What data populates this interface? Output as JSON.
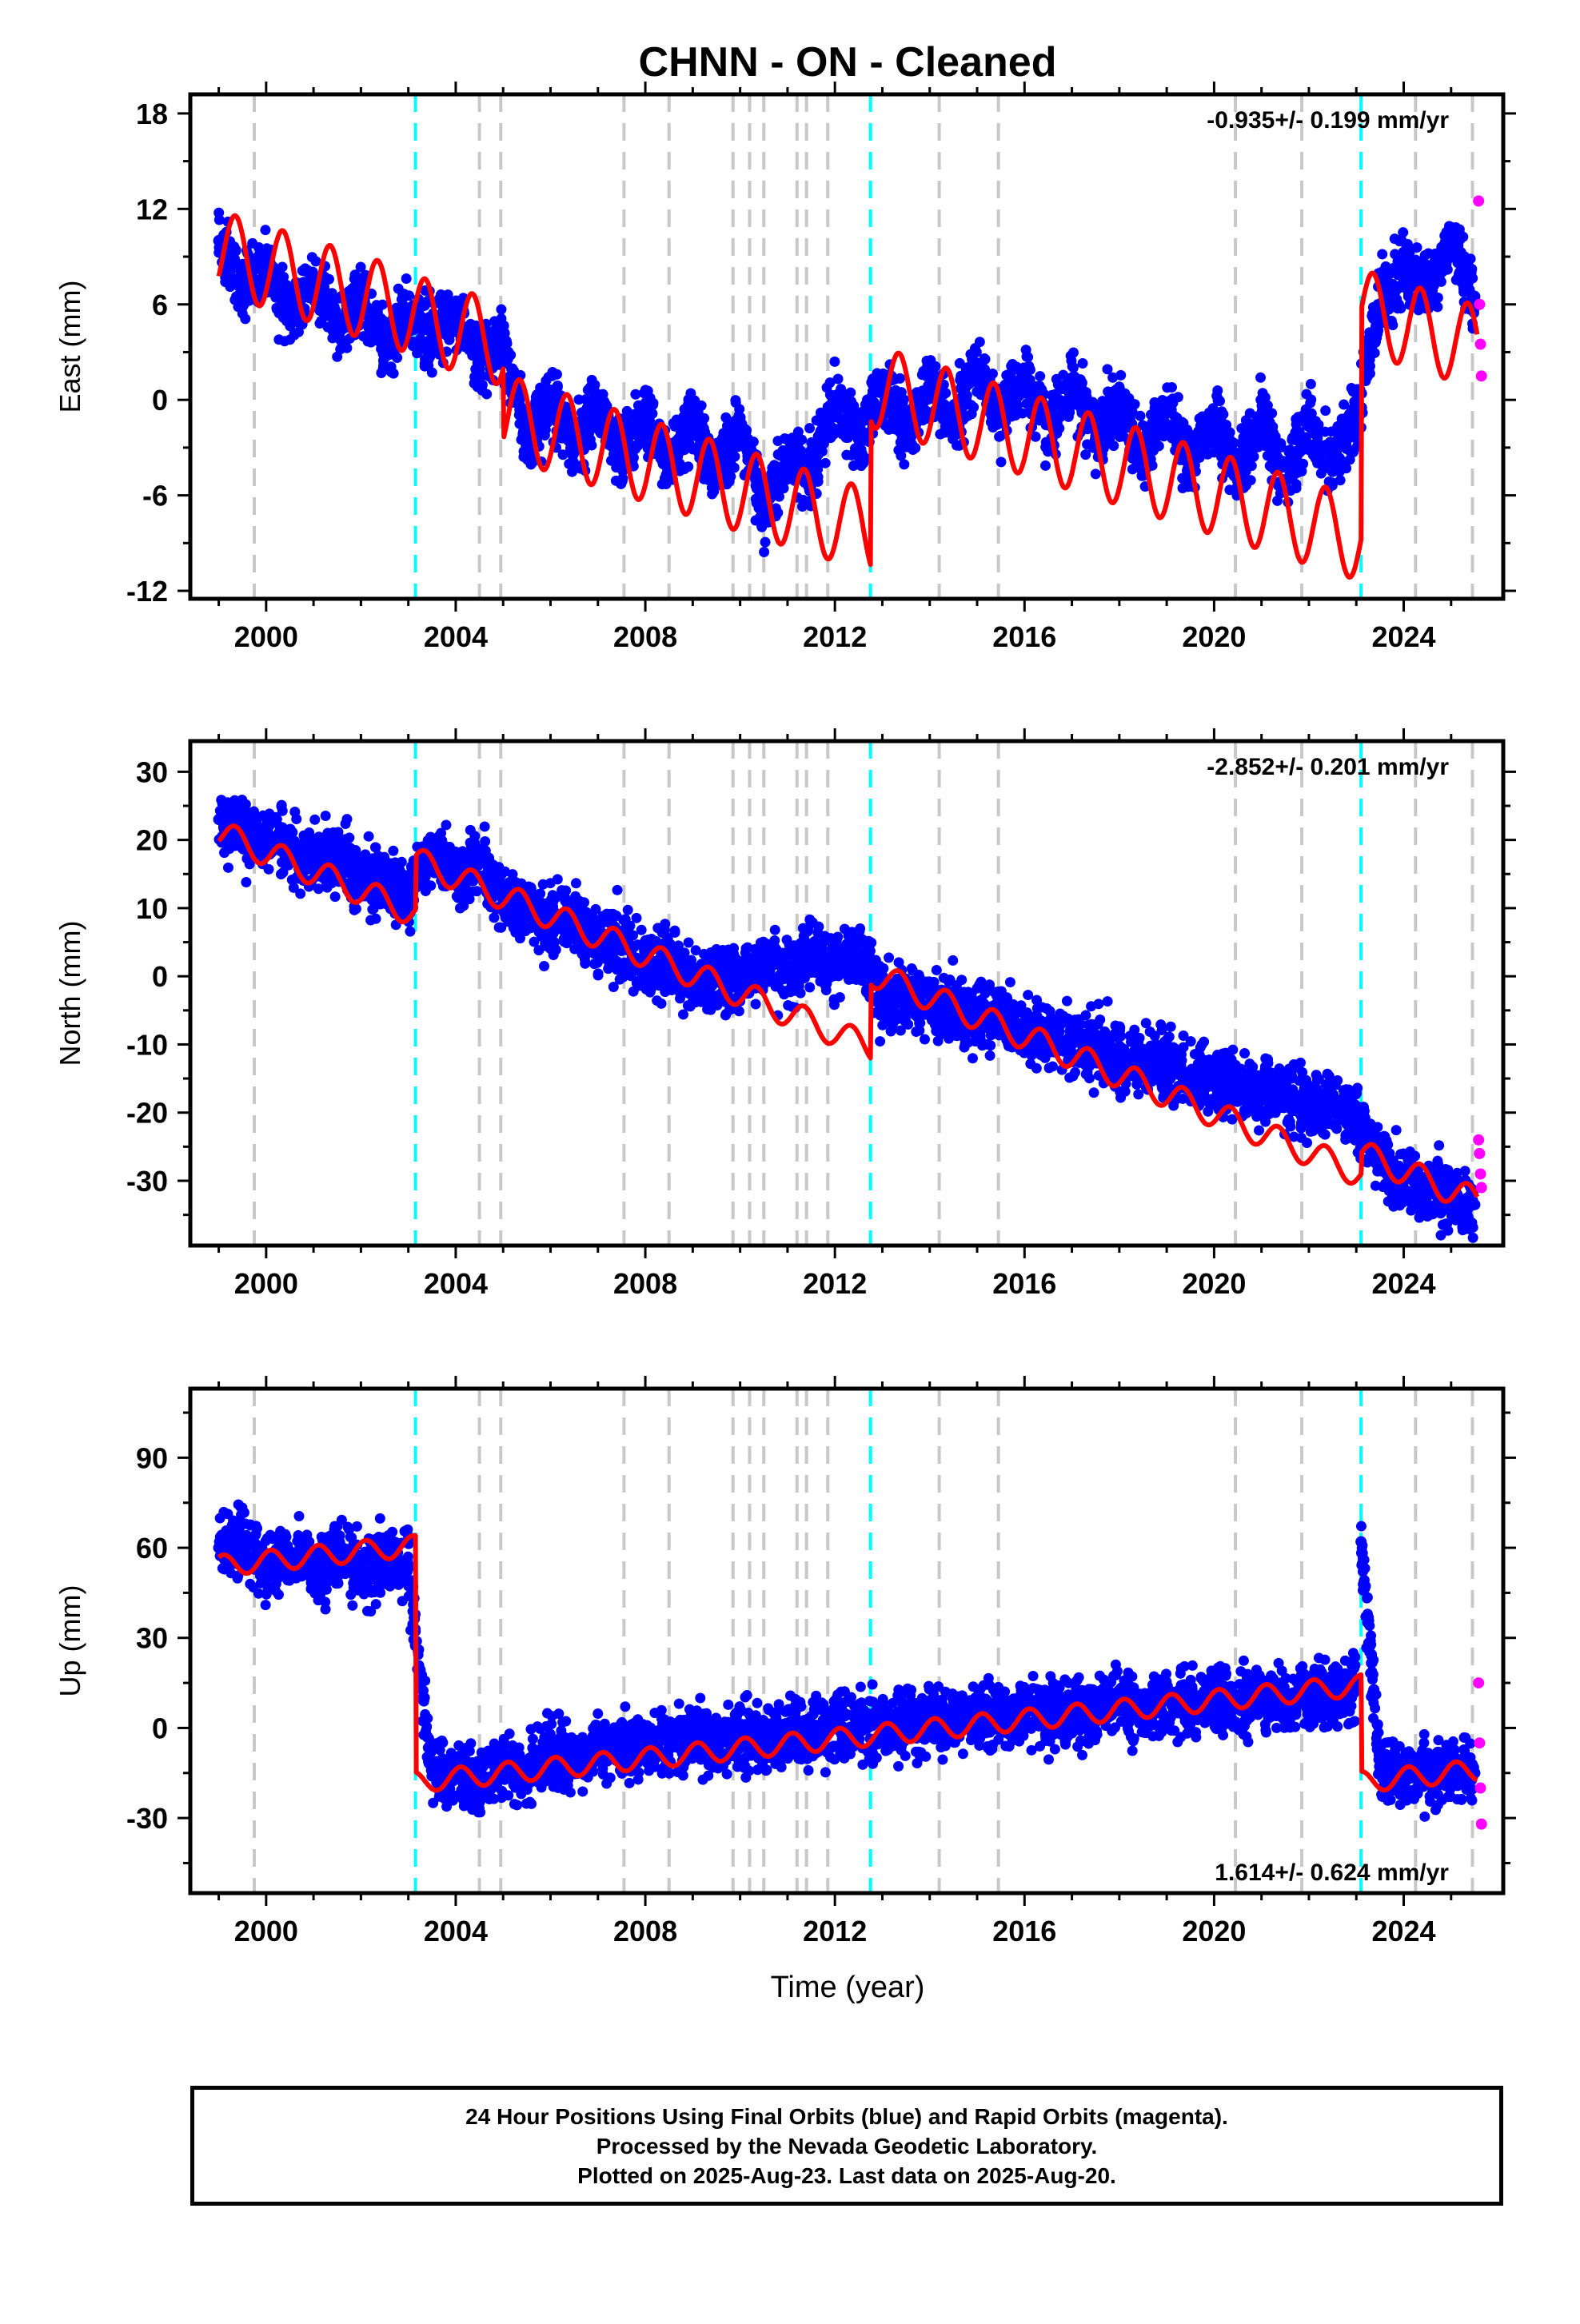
{
  "figure": {
    "title": "CHNN  - ON - Cleaned",
    "xlabel": "Time (year)",
    "caption": [
      "24 Hour Positions Using Final Orbits (blue) and Rapid Orbits (magenta).",
      "Processed by the Nevada Geodetic Laboratory.",
      "Plotted on 2025-Aug-23. Last data on 2025-Aug-20."
    ]
  },
  "colors": {
    "final_orbits": "#0000ff",
    "rapid_orbits": "#ff00ff",
    "model": "#ff0000",
    "equipment_change": "#c8c8c8",
    "earthquake": "#00ffff"
  },
  "events": {
    "gray": [
      1999.75,
      2004.5,
      2004.95,
      2007.55,
      2008.5,
      2009.85,
      2010.2,
      2010.5,
      2011.2,
      2011.4,
      2011.85,
      2014.2,
      2015.45,
      2020.45,
      2021.85,
      2024.25,
      2025.45
    ],
    "cyan": [
      2003.15,
      2012.75,
      2023.1
    ]
  },
  "chart_data": [
    {
      "type": "scatter",
      "id": "east",
      "ylabel": "East (mm)",
      "rate_label": "-0.935+/- 0.199 mm/yr",
      "rate_position": "top-right",
      "xlim": [
        1998.4,
        2026.1
      ],
      "ylim": [
        -12.5,
        19.2
      ],
      "xticks": [
        2000,
        2004,
        2008,
        2012,
        2016,
        2020,
        2024
      ],
      "xtick_labels": [
        "2000",
        "2004",
        "2008",
        "2012",
        "2016",
        "2020",
        "2024"
      ],
      "yticks": [
        18,
        12,
        6,
        0,
        -6,
        -12
      ],
      "ytick_labels": [
        "18",
        "12",
        "6",
        "0",
        "-6",
        "-12"
      ],
      "model": {
        "rate": -0.935,
        "amp": 2.6,
        "phase": 0.35,
        "segments": [
          {
            "start": 1999.0,
            "end": 2003.15,
            "ref": 1999.0,
            "offset": 9.3
          },
          {
            "start": 2003.15,
            "end": 2005.0,
            "ref": 2003.15,
            "offset": 5.2
          },
          {
            "start": 2005.0,
            "end": 2012.75,
            "ref": 2005.0,
            "offset": -1.0
          },
          {
            "start": 2012.75,
            "end": 2023.1,
            "ref": 2012.75,
            "offset": 0.9
          },
          {
            "start": 2023.1,
            "end": 2025.55,
            "ref": 2023.1,
            "offset": 5.6
          }
        ]
      },
      "series": [
        {
          "name": "Final Orbits",
          "x": [
            1999.0,
            1999.5,
            2000.0,
            2000.5,
            2001.0,
            2001.5,
            2002.0,
            2002.5,
            2003.0,
            2003.5,
            2004.0,
            2004.5,
            2005.0,
            2005.5,
            2006.0,
            2006.5,
            2007.0,
            2007.5,
            2008.0,
            2008.5,
            2009.0,
            2009.5,
            2010.0,
            2010.5,
            2011.0,
            2011.5,
            2012.0,
            2012.5,
            2013.0,
            2013.5,
            2014.0,
            2014.5,
            2015.0,
            2015.5,
            2016.0,
            2016.5,
            2017.0,
            2017.5,
            2018.0,
            2018.5,
            2019.0,
            2019.5,
            2020.0,
            2020.5,
            2021.0,
            2021.5,
            2022.0,
            2022.5,
            2023.0,
            2023.5,
            2024.0,
            2024.5,
            2025.0,
            2025.5
          ],
          "y": [
            10.0,
            7.0,
            8.5,
            5.5,
            7.5,
            4.5,
            6.5,
            3.5,
            5.5,
            4.0,
            5.5,
            2.5,
            4.0,
            -2.5,
            0.5,
            -3.0,
            -0.5,
            -3.5,
            -1.0,
            -4.0,
            -1.0,
            -4.5,
            -1.5,
            -7.0,
            -3.5,
            -4.5,
            0.0,
            -2.5,
            1.0,
            -2.0,
            1.0,
            -1.5,
            2.0,
            -1.0,
            1.5,
            -1.5,
            1.0,
            -2.5,
            0.0,
            -3.5,
            -0.5,
            -4.0,
            -1.0,
            -4.5,
            -1.0,
            -5.0,
            -1.5,
            -4.0,
            -1.0,
            6.0,
            8.5,
            7.0,
            10.0,
            6.5
          ]
        },
        {
          "name": "Rapid Orbits",
          "x": [
            2025.58,
            2025.6,
            2025.62,
            2025.64
          ],
          "y": [
            12.5,
            6.0,
            3.5,
            1.5
          ]
        }
      ]
    },
    {
      "type": "scatter",
      "id": "north",
      "ylabel": "North (mm)",
      "rate_label": "-2.852+/- 0.201 mm/yr",
      "rate_position": "top-right",
      "xlim": [
        1998.4,
        2026.1
      ],
      "ylim": [
        -39.5,
        34.5
      ],
      "xticks": [
        2000,
        2004,
        2008,
        2012,
        2016,
        2020,
        2024
      ],
      "xtick_labels": [
        "2000",
        "2004",
        "2008",
        "2012",
        "2016",
        "2020",
        "2024"
      ],
      "yticks": [
        30,
        20,
        10,
        0,
        -10,
        -20,
        -30
      ],
      "ytick_labels": [
        "30",
        "20",
        "10",
        "0",
        "-10",
        "-20",
        "-30"
      ],
      "model": {
        "rate": -2.852,
        "amp": 2.0,
        "phase": 0.35,
        "segments": [
          {
            "start": 1999.0,
            "end": 2003.15,
            "ref": 1999.0,
            "offset": 21.0
          },
          {
            "start": 2003.15,
            "end": 2012.75,
            "ref": 2003.15,
            "offset": 17.0
          },
          {
            "start": 2012.75,
            "end": 2023.1,
            "ref": 2012.75,
            "offset": 0.5
          },
          {
            "start": 2023.1,
            "end": 2025.55,
            "ref": 2023.1,
            "offset": -26.0
          }
        ]
      },
      "series": [
        {
          "name": "Final Orbits",
          "x": [
            1999.0,
            1999.5,
            2000.0,
            2000.5,
            2001.0,
            2001.5,
            2002.0,
            2002.5,
            2003.0,
            2003.5,
            2004.0,
            2004.5,
            2005.0,
            2005.5,
            2006.0,
            2006.5,
            2007.0,
            2007.5,
            2008.0,
            2008.5,
            2009.0,
            2009.5,
            2010.0,
            2010.5,
            2011.0,
            2011.5,
            2012.0,
            2012.5,
            2013.0,
            2013.5,
            2014.0,
            2014.5,
            2015.0,
            2015.5,
            2016.0,
            2016.5,
            2017.0,
            2017.5,
            2018.0,
            2018.5,
            2019.0,
            2019.5,
            2020.0,
            2020.5,
            2021.0,
            2021.5,
            2022.0,
            2022.5,
            2023.0,
            2023.5,
            2024.0,
            2024.5,
            2025.0,
            2025.5
          ],
          "y": [
            23.0,
            21.5,
            20.0,
            19.5,
            17.0,
            17.0,
            14.5,
            14.0,
            11.5,
            19.0,
            15.0,
            17.0,
            11.0,
            10.0,
            8.0,
            8.0,
            5.0,
            4.5,
            2.0,
            2.0,
            -1.0,
            0.0,
            -1.0,
            2.5,
            1.0,
            3.5,
            1.0,
            3.0,
            -3.0,
            -2.5,
            -4.0,
            -4.5,
            -6.0,
            -6.0,
            -8.0,
            -8.5,
            -10.0,
            -10.5,
            -12.0,
            -12.5,
            -13.0,
            -14.5,
            -16.0,
            -15.5,
            -17.0,
            -17.0,
            -19.0,
            -19.0,
            -21.0,
            -27.0,
            -30.0,
            -31.0,
            -33.0,
            -33.5
          ]
        },
        {
          "name": "Rapid Orbits",
          "x": [
            2025.58,
            2025.6,
            2025.62,
            2025.64
          ],
          "y": [
            -24.0,
            -26.0,
            -29.0,
            -31.0
          ]
        }
      ]
    },
    {
      "type": "scatter",
      "id": "up",
      "ylabel": "Up (mm)",
      "rate_label": "1.614+/- 0.624 mm/yr",
      "rate_position": "bottom-right",
      "xlim": [
        1998.4,
        2026.1
      ],
      "ylim": [
        -55.0,
        113.0
      ],
      "xticks": [
        2000,
        2004,
        2008,
        2012,
        2016,
        2020,
        2024
      ],
      "xtick_labels": [
        "2000",
        "2004",
        "2008",
        "2012",
        "2016",
        "2020",
        "2024"
      ],
      "yticks": [
        90,
        60,
        30,
        0,
        -30
      ],
      "ytick_labels": [
        "90",
        "60",
        "30",
        "0",
        "-30"
      ],
      "model": {
        "rate": 1.614,
        "amp": 3.5,
        "phase": 0.1,
        "segments": [
          {
            "start": 1999.0,
            "end": 2003.15,
            "ref": 1999.0,
            "offset": 54.0
          },
          {
            "start": 2003.15,
            "end": 2023.1,
            "ref": 2003.15,
            "offset": -18.0
          },
          {
            "start": 2023.1,
            "end": 2025.55,
            "ref": 2023.1,
            "offset": -18.0
          }
        ]
      },
      "series": [
        {
          "name": "Final Orbits",
          "x": [
            1999.0,
            1999.5,
            2000.0,
            2000.5,
            2001.0,
            2001.5,
            2002.0,
            2002.5,
            2003.0,
            2003.5,
            2004.0,
            2004.5,
            2005.0,
            2005.5,
            2006.0,
            2006.5,
            2007.0,
            2007.5,
            2008.0,
            2008.5,
            2009.0,
            2009.5,
            2010.0,
            2010.5,
            2011.0,
            2011.5,
            2012.0,
            2012.5,
            2013.0,
            2013.5,
            2014.0,
            2014.5,
            2015.0,
            2015.5,
            2016.0,
            2016.5,
            2017.0,
            2017.5,
            2018.0,
            2018.5,
            2019.0,
            2019.5,
            2020.0,
            2020.5,
            2021.0,
            2021.5,
            2022.0,
            2022.5,
            2023.0,
            2023.1,
            2023.5,
            2024.0,
            2024.5,
            2025.0,
            2025.5
          ],
          "y": [
            60.0,
            62.0,
            55.0,
            58.0,
            53.0,
            57.0,
            52.0,
            56.0,
            54.0,
            -16.0,
            -15.0,
            -18.0,
            -12.0,
            -14.0,
            -8.0,
            -10.0,
            -6.0,
            -8.0,
            -4.0,
            -6.0,
            -3.0,
            -5.0,
            -2.0,
            -4.0,
            -1.0,
            -3.0,
            1.0,
            -1.0,
            3.0,
            1.0,
            4.0,
            2.0,
            5.0,
            3.0,
            6.0,
            4.0,
            7.0,
            5.0,
            8.0,
            6.0,
            9.0,
            7.0,
            10.0,
            8.0,
            11.0,
            9.0,
            12.0,
            10.0,
            13.0,
            62.0,
            -15.0,
            -14.0,
            -16.0,
            -13.0,
            -15.0
          ]
        },
        {
          "name": "Rapid Orbits",
          "x": [
            2025.58,
            2025.6,
            2025.62,
            2025.64
          ],
          "y": [
            15.0,
            -5.0,
            -20.0,
            -32.0
          ]
        }
      ]
    }
  ]
}
